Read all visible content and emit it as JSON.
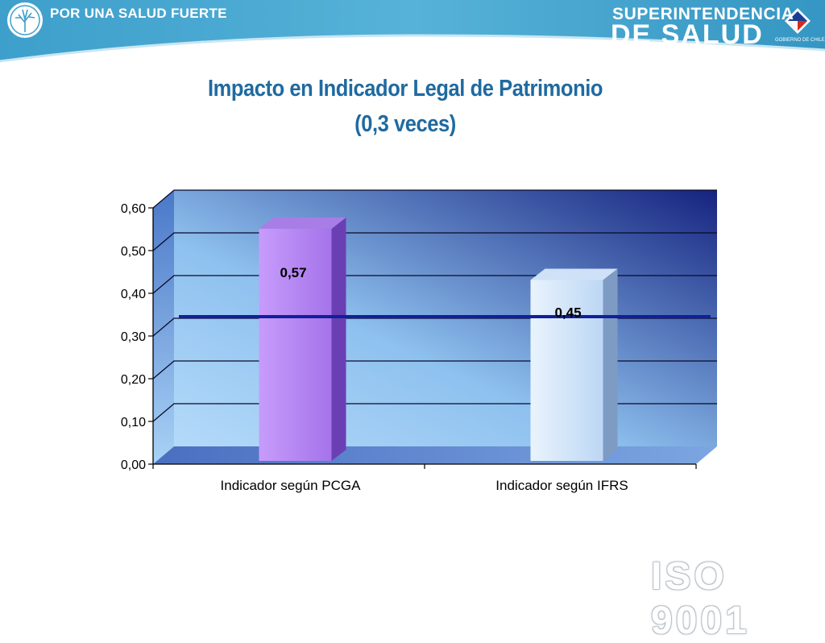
{
  "header": {
    "left_brand": "POR UNA SALUD FUERTE",
    "right_brand_line1": "SUPERINTENDENCIA",
    "right_brand_line2": "DE SALUD",
    "gov_label": "GOBIERNO DE CHILE"
  },
  "title_line1": "Impacto en Indicador Legal de Patrimonio",
  "title_line2": "(0,3 veces)",
  "watermark": "ISO 9001",
  "colors": {
    "banner": "#3a9cc8",
    "title": "#1f6aa0",
    "bar_pcga": "#b98af2",
    "bar_ifrs": "#d6e8fb",
    "reference_line": "#10209a",
    "plot_back_dark": "#1b2a86",
    "plot_back_light": "#9fcdf6"
  },
  "chart_data": {
    "type": "bar",
    "title": "Impacto en Indicador Legal de Patrimonio (0,3 veces)",
    "categories": [
      "Indicador según PCGA",
      "Indicador según IFRS"
    ],
    "values": [
      0.57,
      0.45
    ],
    "data_labels": [
      "0,57",
      "0,45"
    ],
    "reference_line": 0.3,
    "ylim": [
      0,
      0.6
    ],
    "yticks": [
      "0,00",
      "0,10",
      "0,20",
      "0,30",
      "0,40",
      "0,50",
      "0,60"
    ],
    "grid": true,
    "legend": "none",
    "xlabel": "",
    "ylabel": ""
  }
}
